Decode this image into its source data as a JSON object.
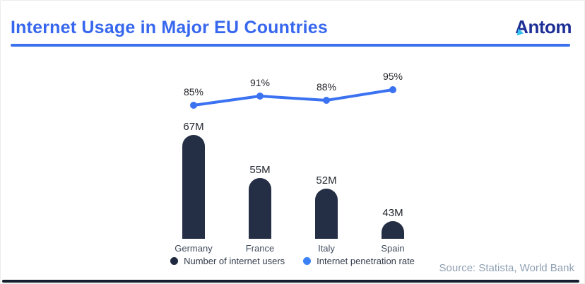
{
  "header": {
    "title": "Internet Usage in Major EU Countries",
    "logo_text": "Antom",
    "accent_color": "#3a6ff0",
    "logo_color": "#1d2f96"
  },
  "chart_data": {
    "type": "bar",
    "categories": [
      "Germany",
      "France",
      "Italy",
      "Spain"
    ],
    "series": [
      {
        "name": "Number of internet users",
        "type": "bar",
        "unit": "M",
        "values": [
          67,
          55,
          52,
          43
        ],
        "labels": [
          "67M",
          "55M",
          "52M",
          "43M"
        ],
        "color": "#242e44"
      },
      {
        "name": "Internet penetration rate",
        "type": "line",
        "unit": "%",
        "values": [
          85,
          91,
          88,
          95
        ],
        "labels": [
          "85%",
          "91%",
          "88%",
          "95%"
        ],
        "color": "#3b72f2"
      }
    ],
    "title": "Internet Usage in Major EU Countries",
    "xlabel": "",
    "ylabel": "",
    "grid": false,
    "legend_position": "bottom"
  },
  "footer": {
    "source": "Source: Statista, World Bank"
  }
}
